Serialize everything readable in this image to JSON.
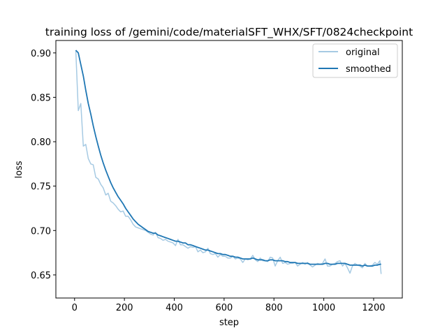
{
  "chart_data": {
    "type": "line",
    "title": "training loss of /gemini/code/materialSFT_WHX/SFT/0824checkpoint",
    "xlabel": "step",
    "ylabel": "loss",
    "xlim": [
      -75,
      1315
    ],
    "ylim": [
      0.624,
      0.914
    ],
    "xticks": [
      0,
      200,
      400,
      600,
      800,
      1000,
      1200
    ],
    "yticks": [
      0.65,
      0.7,
      0.75,
      0.8,
      0.85,
      0.9
    ],
    "ytick_labels": [
      "0.65",
      "0.70",
      "0.75",
      "0.80",
      "0.85",
      "0.90"
    ],
    "grid": false,
    "legend_position": "upper right",
    "series": [
      {
        "name": "original",
        "color": "#a6cae3",
        "x": [
          5,
          15,
          25,
          35,
          45,
          55,
          65,
          75,
          85,
          95,
          105,
          115,
          125,
          135,
          145,
          155,
          165,
          175,
          185,
          195,
          205,
          215,
          225,
          235,
          245,
          255,
          265,
          275,
          285,
          295,
          305,
          315,
          325,
          335,
          345,
          355,
          365,
          375,
          385,
          395,
          405,
          415,
          425,
          435,
          445,
          455,
          465,
          475,
          485,
          495,
          505,
          515,
          525,
          535,
          545,
          555,
          565,
          575,
          585,
          595,
          605,
          615,
          625,
          635,
          645,
          655,
          665,
          675,
          685,
          695,
          705,
          715,
          725,
          735,
          745,
          755,
          765,
          775,
          785,
          795,
          805,
          815,
          825,
          835,
          845,
          855,
          865,
          875,
          885,
          895,
          905,
          915,
          925,
          935,
          945,
          955,
          965,
          975,
          985,
          995,
          1005,
          1015,
          1025,
          1035,
          1045,
          1055,
          1065,
          1075,
          1085,
          1095,
          1105,
          1115,
          1125,
          1135,
          1145,
          1155,
          1165,
          1175,
          1185,
          1195,
          1205,
          1215,
          1225,
          1230
        ],
        "values": [
          0.903,
          0.835,
          0.843,
          0.795,
          0.797,
          0.781,
          0.775,
          0.774,
          0.76,
          0.758,
          0.752,
          0.748,
          0.74,
          0.742,
          0.733,
          0.731,
          0.728,
          0.724,
          0.721,
          0.722,
          0.716,
          0.716,
          0.712,
          0.707,
          0.704,
          0.703,
          0.702,
          0.701,
          0.7,
          0.698,
          0.696,
          0.695,
          0.698,
          0.692,
          0.691,
          0.689,
          0.69,
          0.688,
          0.687,
          0.686,
          0.683,
          0.69,
          0.684,
          0.684,
          0.682,
          0.68,
          0.682,
          0.681,
          0.682,
          0.676,
          0.678,
          0.675,
          0.676,
          0.68,
          0.674,
          0.673,
          0.674,
          0.67,
          0.673,
          0.671,
          0.671,
          0.669,
          0.669,
          0.671,
          0.668,
          0.669,
          0.668,
          0.664,
          0.668,
          0.667,
          0.668,
          0.672,
          0.667,
          0.665,
          0.669,
          0.666,
          0.666,
          0.665,
          0.67,
          0.669,
          0.66,
          0.666,
          0.67,
          0.663,
          0.664,
          0.662,
          0.663,
          0.663,
          0.664,
          0.66,
          0.662,
          0.664,
          0.662,
          0.664,
          0.661,
          0.659,
          0.661,
          0.663,
          0.662,
          0.663,
          0.668,
          0.66,
          0.66,
          0.662,
          0.663,
          0.665,
          0.666,
          0.66,
          0.663,
          0.658,
          0.652,
          0.66,
          0.663,
          0.661,
          0.66,
          0.658,
          0.663,
          0.66,
          0.66,
          0.661,
          0.664,
          0.662,
          0.666,
          0.651
        ]
      },
      {
        "name": "smoothed",
        "color": "#1f77b4",
        "x": [
          5,
          15,
          25,
          35,
          45,
          55,
          65,
          75,
          85,
          95,
          105,
          115,
          125,
          135,
          145,
          155,
          165,
          175,
          185,
          195,
          205,
          215,
          225,
          235,
          245,
          255,
          265,
          275,
          285,
          295,
          305,
          315,
          325,
          335,
          345,
          355,
          365,
          375,
          385,
          395,
          405,
          415,
          425,
          435,
          445,
          455,
          465,
          475,
          485,
          495,
          505,
          515,
          525,
          535,
          545,
          555,
          565,
          575,
          585,
          595,
          605,
          615,
          625,
          635,
          645,
          655,
          665,
          675,
          685,
          695,
          705,
          715,
          725,
          735,
          745,
          755,
          765,
          775,
          785,
          795,
          805,
          815,
          825,
          835,
          845,
          855,
          865,
          875,
          885,
          895,
          905,
          915,
          925,
          935,
          945,
          955,
          965,
          975,
          985,
          995,
          1005,
          1015,
          1025,
          1035,
          1045,
          1055,
          1065,
          1075,
          1085,
          1095,
          1105,
          1115,
          1125,
          1135,
          1145,
          1155,
          1165,
          1175,
          1185,
          1195,
          1205,
          1215,
          1225,
          1230
        ],
        "values": [
          0.903,
          0.9,
          0.887,
          0.874,
          0.858,
          0.843,
          0.831,
          0.818,
          0.806,
          0.795,
          0.785,
          0.776,
          0.768,
          0.761,
          0.754,
          0.748,
          0.743,
          0.738,
          0.734,
          0.73,
          0.725,
          0.721,
          0.717,
          0.713,
          0.71,
          0.707,
          0.705,
          0.703,
          0.701,
          0.699,
          0.698,
          0.697,
          0.697,
          0.695,
          0.694,
          0.693,
          0.692,
          0.691,
          0.69,
          0.689,
          0.688,
          0.688,
          0.687,
          0.686,
          0.686,
          0.684,
          0.684,
          0.683,
          0.682,
          0.681,
          0.68,
          0.679,
          0.678,
          0.678,
          0.677,
          0.676,
          0.675,
          0.674,
          0.674,
          0.673,
          0.673,
          0.672,
          0.671,
          0.671,
          0.67,
          0.67,
          0.669,
          0.668,
          0.668,
          0.668,
          0.668,
          0.669,
          0.668,
          0.667,
          0.667,
          0.667,
          0.666,
          0.666,
          0.667,
          0.667,
          0.666,
          0.666,
          0.666,
          0.666,
          0.665,
          0.665,
          0.664,
          0.664,
          0.664,
          0.663,
          0.663,
          0.663,
          0.663,
          0.663,
          0.662,
          0.662,
          0.662,
          0.662,
          0.662,
          0.662,
          0.663,
          0.663,
          0.662,
          0.662,
          0.662,
          0.663,
          0.663,
          0.663,
          0.663,
          0.662,
          0.661,
          0.661,
          0.661,
          0.661,
          0.661,
          0.66,
          0.661,
          0.66,
          0.66,
          0.66,
          0.661,
          0.661,
          0.662,
          0.662
        ]
      }
    ]
  }
}
